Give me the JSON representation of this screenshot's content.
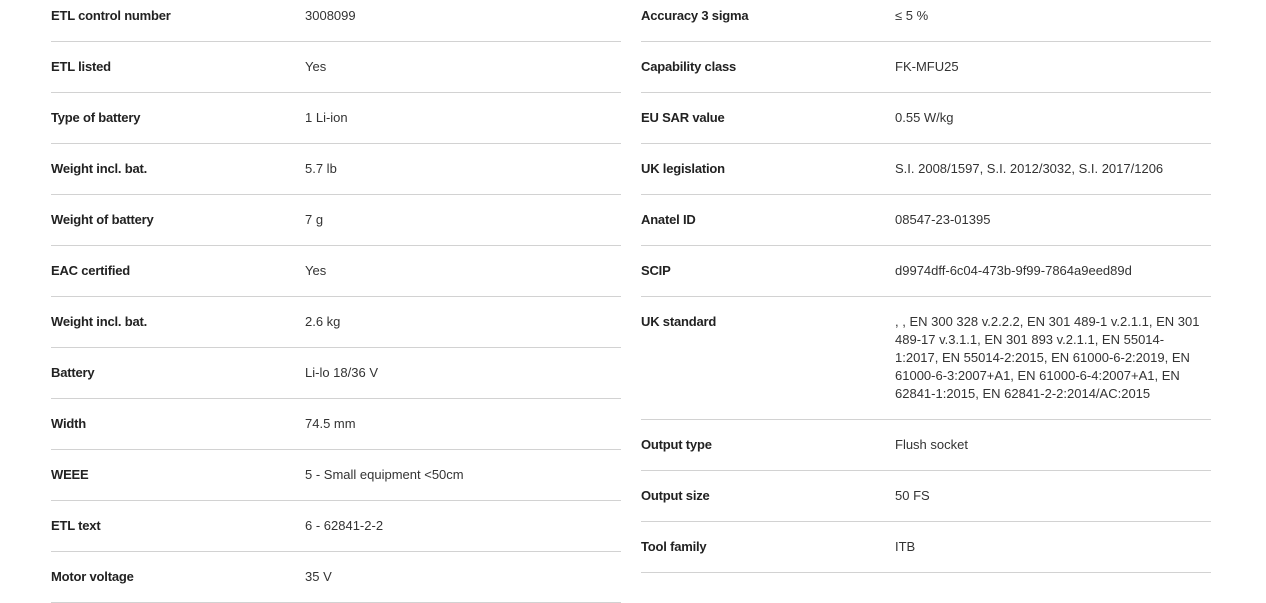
{
  "left": [
    {
      "label": "ETL control number",
      "value": "3008099"
    },
    {
      "label": "ETL listed",
      "value": "Yes"
    },
    {
      "label": "Type of battery",
      "value": "1 Li-ion"
    },
    {
      "label": "Weight incl. bat.",
      "value": "5.7 lb"
    },
    {
      "label": "Weight of battery",
      "value": "7 g"
    },
    {
      "label": "EAC certified",
      "value": "Yes"
    },
    {
      "label": "Weight incl. bat.",
      "value": "2.6 kg"
    },
    {
      "label": "Battery",
      "value": "Li-lo 18/36 V"
    },
    {
      "label": "Width",
      "value": "74.5 mm"
    },
    {
      "label": "WEEE",
      "value": "5 - Small equipment <50cm"
    },
    {
      "label": "ETL text",
      "value": "6 - 62841-2-2"
    },
    {
      "label": "Motor voltage",
      "value": "35 V"
    }
  ],
  "right": [
    {
      "label": "Accuracy 3 sigma",
      "value": "≤ 5 %"
    },
    {
      "label": "Capability class",
      "value": "FK-MFU25"
    },
    {
      "label": "EU SAR value",
      "value": "0.55 W/kg"
    },
    {
      "label": "UK legislation",
      "value": "S.I. 2008/1597, S.I. 2012/3032, S.I. 2017/1206"
    },
    {
      "label": "Anatel ID",
      "value": "08547-23-01395"
    },
    {
      "label": "SCIP",
      "value": "d9974dff-6c04-473b-9f99-7864a9eed89d"
    },
    {
      "label": "UK standard",
      "value": ", , EN 300 328 v.2.2.2, EN 301 489-1 v.2.1.1, EN 301 489-17 v.3.1.1, EN 301 893 v.2.1.1, EN 55014-1:2017, EN 55014-2:2015, EN 61000-6-2:2019, EN 61000-6-3:2007+A1, EN 61000-6-4:2007+A1, EN 62841-1:2015, EN 62841-2-2:2014/AC:2015"
    },
    {
      "label": "Output type",
      "value": "Flush socket"
    },
    {
      "label": "Output size",
      "value": "50 FS"
    },
    {
      "label": "Tool family",
      "value": "ITB"
    }
  ]
}
